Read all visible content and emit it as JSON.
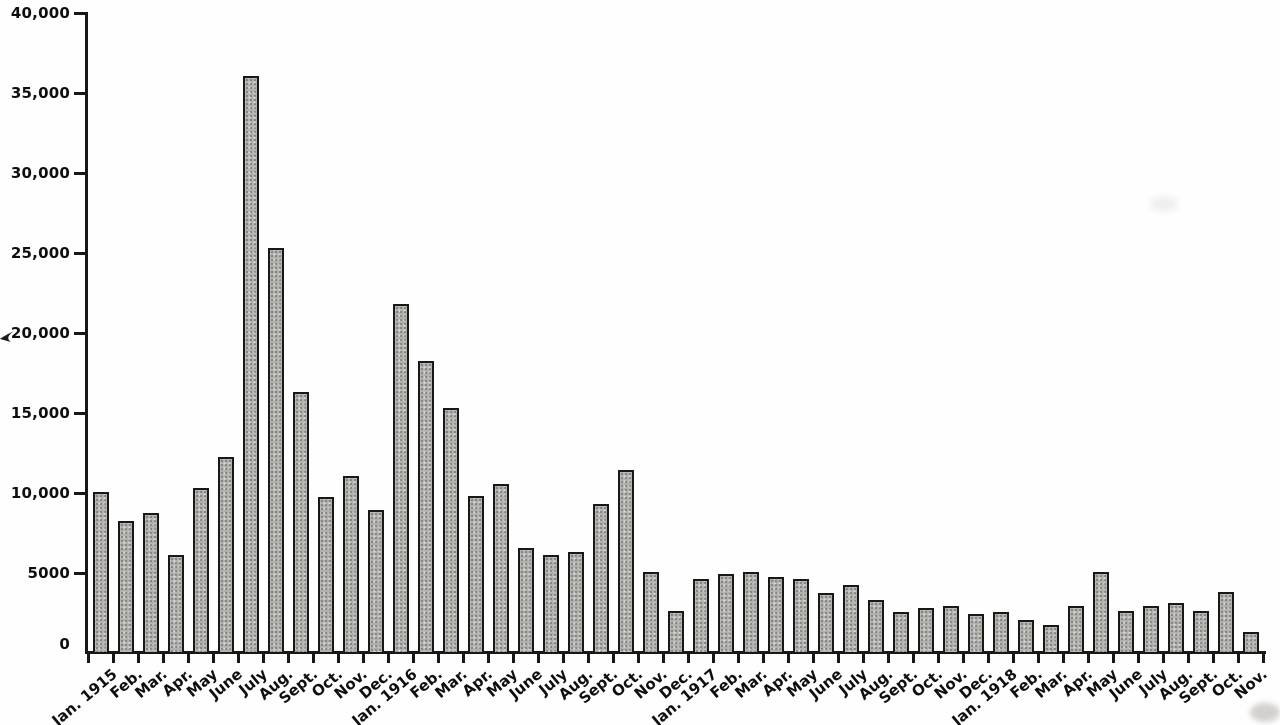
{
  "chart_data": {
    "type": "bar",
    "title": "",
    "xlabel": "",
    "ylabel": "",
    "ylim": [
      0,
      40000
    ],
    "ytick_interval": 5000,
    "ytick_labels": [
      "0",
      "5000",
      "10,000",
      "15,000",
      "20,000",
      "25,000",
      "30,000",
      "35,000",
      "40,000"
    ],
    "grid": false,
    "legend": null,
    "bar_fill_color": "#b3b1ae",
    "bar_border_color": "#181818",
    "axis_color": "#171717",
    "categories": [
      "Jan. 1915",
      "Feb.",
      "Mar.",
      "Apr.",
      "May",
      "June",
      "July",
      "Aug.",
      "Sept.",
      "Oct.",
      "Nov.",
      "Dec.",
      "Jan. 1916",
      "Feb.",
      "Mar.",
      "Apr.",
      "May",
      "June",
      "July",
      "Aug.",
      "Sept.",
      "Oct.",
      "Nov.",
      "Dec.",
      "Jan. 1917",
      "Feb.",
      "Mar.",
      "Apr.",
      "May",
      "June",
      "July",
      "Aug.",
      "Sept.",
      "Oct.",
      "Nov.",
      "Dec.",
      "Jan. 1918",
      "Feb.",
      "Mar.",
      "Apr.",
      "May",
      "June",
      "July",
      "Aug.",
      "Sept.",
      "Oct.",
      "Nov."
    ],
    "values": [
      10100,
      8300,
      8800,
      6200,
      10400,
      12300,
      36100,
      25400,
      16400,
      9800,
      11100,
      9000,
      21900,
      18300,
      15400,
      9900,
      10600,
      6600,
      6200,
      6400,
      9400,
      11500,
      5100,
      2700,
      4700,
      5000,
      5100,
      4800,
      4700,
      3800,
      4300,
      3400,
      2600,
      2900,
      3000,
      2500,
      2600,
      2100,
      1800,
      3000,
      5100,
      2700,
      3000,
      3200,
      2700,
      3900,
      1400
    ]
  }
}
